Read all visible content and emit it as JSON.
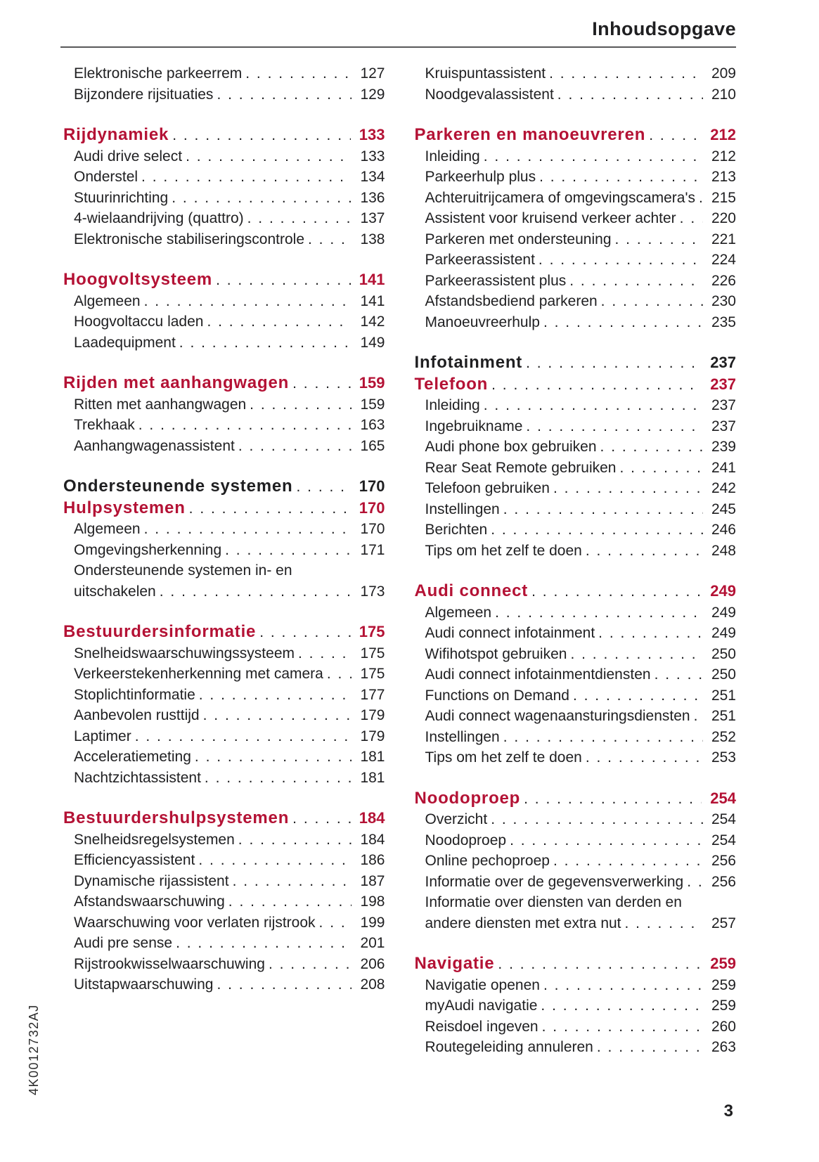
{
  "header": {
    "title": "Inhoudsopgave"
  },
  "footer": {
    "page_number": "3",
    "doc_code": "4K0012732AJ"
  },
  "colors": {
    "accent_red": "#b41235",
    "ink": "#1f1f21",
    "rule": "#58585a"
  },
  "toc": {
    "left": [
      {
        "rows": [
          {
            "label": "Elektronische parkeerrem",
            "page": "127",
            "style": "item"
          },
          {
            "label": "Bijzondere rijsituaties",
            "page": "129",
            "style": "item"
          }
        ]
      },
      {
        "rows": [
          {
            "label": "Rijdynamiek",
            "page": "133",
            "style": "h-red"
          },
          {
            "label": "Audi drive select",
            "page": "133",
            "style": "item"
          },
          {
            "label": "Onderstel",
            "page": "134",
            "style": "item"
          },
          {
            "label": "Stuurinrichting",
            "page": "136",
            "style": "item"
          },
          {
            "label": "4-wielaandrijving (quattro)",
            "page": "137",
            "style": "item"
          },
          {
            "label": "Elektronische stabiliseringscontrole",
            "page": "138",
            "style": "item"
          }
        ]
      },
      {
        "rows": [
          {
            "label": "Hoogvoltsysteem",
            "page": "141",
            "style": "h-red"
          },
          {
            "label": "Algemeen",
            "page": "141",
            "style": "item"
          },
          {
            "label": "Hoogvoltaccu laden",
            "page": "142",
            "style": "item"
          },
          {
            "label": "Laadequipment",
            "page": "149",
            "style": "item"
          }
        ]
      },
      {
        "rows": [
          {
            "label": "Rijden met aanhangwagen",
            "page": "159",
            "style": "h-red"
          },
          {
            "label": "Ritten met aanhangwagen",
            "page": "159",
            "style": "item"
          },
          {
            "label": "Trekhaak",
            "page": "163",
            "style": "item"
          },
          {
            "label": "Aanhangwagenassistent",
            "page": "165",
            "style": "item"
          }
        ]
      },
      {
        "rows": [
          {
            "label": "Ondersteunende systemen",
            "page": "170",
            "style": "h-black"
          },
          {
            "label": "Hulpsystemen",
            "page": "170",
            "style": "h-red"
          },
          {
            "label": "Algemeen",
            "page": "170",
            "style": "item"
          },
          {
            "label": "Omgevingsherkenning",
            "page": "171",
            "style": "item"
          },
          {
            "label": "Ondersteunende systemen in- en",
            "page": null,
            "style": "item"
          },
          {
            "label": "uitschakelen",
            "page": "173",
            "style": "item"
          }
        ]
      },
      {
        "rows": [
          {
            "label": "Bestuurdersinformatie",
            "page": "175",
            "style": "h-red"
          },
          {
            "label": "Snelheidswaarschuwingssysteem",
            "page": "175",
            "style": "item"
          },
          {
            "label": "Verkeerstekenherkenning met camera",
            "page": "175",
            "style": "item"
          },
          {
            "label": "Stoplichtinformatie",
            "page": "177",
            "style": "item"
          },
          {
            "label": "Aanbevolen rusttijd",
            "page": "179",
            "style": "item"
          },
          {
            "label": "Laptimer",
            "page": "179",
            "style": "item"
          },
          {
            "label": "Acceleratiemeting",
            "page": "181",
            "style": "item"
          },
          {
            "label": "Nachtzichtassistent",
            "page": "181",
            "style": "item"
          }
        ]
      },
      {
        "rows": [
          {
            "label": "Bestuurdershulpsystemen",
            "page": "184",
            "style": "h-red"
          },
          {
            "label": "Snelheidsregelsystemen",
            "page": "184",
            "style": "item"
          },
          {
            "label": "Efficiencyassistent",
            "page": "186",
            "style": "item"
          },
          {
            "label": "Dynamische rijassistent",
            "page": "187",
            "style": "item"
          },
          {
            "label": "Afstandswaarschuwing",
            "page": "198",
            "style": "item"
          },
          {
            "label": "Waarschuwing voor verlaten rijstrook",
            "page": "199",
            "style": "item"
          },
          {
            "label": "Audi pre sense",
            "page": "201",
            "style": "item"
          },
          {
            "label": "Rijstrookwisselwaarschuwing",
            "page": "206",
            "style": "item"
          },
          {
            "label": "Uitstapwaarschuwing",
            "page": "208",
            "style": "item"
          }
        ]
      }
    ],
    "right": [
      {
        "rows": [
          {
            "label": "Kruispuntassistent",
            "page": "209",
            "style": "item"
          },
          {
            "label": "Noodgevalassistent",
            "page": "210",
            "style": "item"
          }
        ]
      },
      {
        "rows": [
          {
            "label": "Parkeren en manoeuvreren",
            "page": "212",
            "style": "h-red"
          },
          {
            "label": "Inleiding",
            "page": "212",
            "style": "item"
          },
          {
            "label": "Parkeerhulp plus",
            "page": "213",
            "style": "item"
          },
          {
            "label": "Achteruitrijcamera of omgevingscamera's",
            "page": "215",
            "style": "item"
          },
          {
            "label": "Assistent voor kruisend verkeer achter",
            "page": "220",
            "style": "item"
          },
          {
            "label": "Parkeren met ondersteuning",
            "page": "221",
            "style": "item"
          },
          {
            "label": "Parkeerassistent",
            "page": "224",
            "style": "item"
          },
          {
            "label": "Parkeerassistent plus",
            "page": "226",
            "style": "item"
          },
          {
            "label": "Afstandsbediend parkeren",
            "page": "230",
            "style": "item"
          },
          {
            "label": "Manoeuvreerhulp",
            "page": "235",
            "style": "item"
          }
        ]
      },
      {
        "rows": [
          {
            "label": "Infotainment",
            "page": "237",
            "style": "h-black"
          },
          {
            "label": "Telefoon",
            "page": "237",
            "style": "h-red"
          },
          {
            "label": "Inleiding",
            "page": "237",
            "style": "item"
          },
          {
            "label": "Ingebruikname",
            "page": "237",
            "style": "item"
          },
          {
            "label": "Audi phone box gebruiken",
            "page": "239",
            "style": "item"
          },
          {
            "label": "Rear Seat Remote gebruiken",
            "page": "241",
            "style": "item"
          },
          {
            "label": "Telefoon gebruiken",
            "page": "242",
            "style": "item"
          },
          {
            "label": "Instellingen",
            "page": "245",
            "style": "item"
          },
          {
            "label": "Berichten",
            "page": "246",
            "style": "item"
          },
          {
            "label": "Tips om het zelf te doen",
            "page": "248",
            "style": "item"
          }
        ]
      },
      {
        "rows": [
          {
            "label": "Audi connect",
            "page": "249",
            "style": "h-red"
          },
          {
            "label": "Algemeen",
            "page": "249",
            "style": "item"
          },
          {
            "label": "Audi connect infotainment",
            "page": "249",
            "style": "item"
          },
          {
            "label": "Wifihotspot gebruiken",
            "page": "250",
            "style": "item"
          },
          {
            "label": "Audi connect infotainmentdiensten",
            "page": "250",
            "style": "item"
          },
          {
            "label": "Functions on Demand",
            "page": "251",
            "style": "item"
          },
          {
            "label": "Audi connect wagenaansturingsdiensten",
            "page": "251",
            "style": "item"
          },
          {
            "label": "Instellingen",
            "page": "252",
            "style": "item"
          },
          {
            "label": "Tips om het zelf te doen",
            "page": "253",
            "style": "item"
          }
        ]
      },
      {
        "rows": [
          {
            "label": "Noodoproep",
            "page": "254",
            "style": "h-red"
          },
          {
            "label": "Overzicht",
            "page": "254",
            "style": "item"
          },
          {
            "label": "Noodoproep",
            "page": "254",
            "style": "item"
          },
          {
            "label": "Online pechoproep",
            "page": "256",
            "style": "item"
          },
          {
            "label": "Informatie over de gegevensverwerking",
            "page": "256",
            "style": "item"
          },
          {
            "label": "Informatie over diensten van derden en",
            "page": null,
            "style": "item"
          },
          {
            "label": "andere diensten met extra nut",
            "page": "257",
            "style": "item"
          }
        ]
      },
      {
        "rows": [
          {
            "label": "Navigatie",
            "page": "259",
            "style": "h-red"
          },
          {
            "label": "Navigatie openen",
            "page": "259",
            "style": "item"
          },
          {
            "label": "myAudi navigatie",
            "page": "259",
            "style": "item"
          },
          {
            "label": "Reisdoel ingeven",
            "page": "260",
            "style": "item"
          },
          {
            "label": "Routegeleiding annuleren",
            "page": "263",
            "style": "item"
          }
        ]
      }
    ]
  }
}
